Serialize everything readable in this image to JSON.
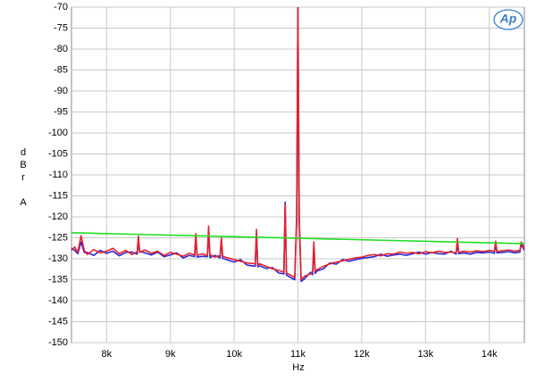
{
  "chart_data": {
    "type": "line",
    "xlabel": "Hz",
    "ylabel": "dBr A",
    "logo": "Ap",
    "xlim": [
      7450,
      14550
    ],
    "ylim": [
      -150,
      -70
    ],
    "xticks": [
      {
        "value": 8000,
        "label": "8k"
      },
      {
        "value": 9000,
        "label": "9k"
      },
      {
        "value": 10000,
        "label": "10k"
      },
      {
        "value": 11000,
        "label": "11k"
      },
      {
        "value": 12000,
        "label": "12k"
      },
      {
        "value": 13000,
        "label": "13k"
      },
      {
        "value": 14000,
        "label": "14k"
      }
    ],
    "yticks": [
      -70,
      -75,
      -80,
      -85,
      -90,
      -95,
      -100,
      -105,
      -110,
      -115,
      -120,
      -125,
      -130,
      -135,
      -140,
      -145,
      -150
    ],
    "grid": true,
    "series": [
      {
        "color": "#2a2ad8",
        "x": [
          7450,
          7500,
          7550,
          7600,
          7650,
          7700,
          7800,
          7900,
          8000,
          8100,
          8200,
          8300,
          8400,
          8480,
          8500,
          8520,
          8600,
          8700,
          8800,
          8900,
          9000,
          9100,
          9200,
          9300,
          9380,
          9400,
          9420,
          9500,
          9580,
          9600,
          9620,
          9700,
          9780,
          9800,
          9820,
          9900,
          10000,
          10100,
          10200,
          10330,
          10350,
          10370,
          10400,
          10500,
          10600,
          10700,
          10780,
          10800,
          10820,
          10900,
          10950,
          10980,
          11000,
          11020,
          11050,
          11100,
          11200,
          11230,
          11250,
          11270,
          11300,
          11400,
          11500,
          11600,
          11700,
          11800,
          11900,
          12000,
          12100,
          12200,
          12300,
          12400,
          12500,
          12600,
          12700,
          12800,
          12900,
          13000,
          13100,
          13200,
          13300,
          13400,
          13480,
          13500,
          13520,
          13600,
          13700,
          13800,
          13900,
          14000,
          14080,
          14100,
          14120,
          14200,
          14300,
          14400,
          14480,
          14500,
          14550
        ],
        "values": [
          -127.5,
          -128,
          -128.8,
          -126,
          -128.5,
          -128.5,
          -129.2,
          -128,
          -128.7,
          -128.2,
          -129.3,
          -128.5,
          -128.4,
          -128.9,
          -126,
          -128.2,
          -128.6,
          -129.1,
          -128.4,
          -129.5,
          -129.1,
          -128.6,
          -129.8,
          -129.2,
          -129.5,
          -125,
          -129.6,
          -129.4,
          -129.5,
          -123,
          -129.7,
          -129.2,
          -129.8,
          -125.5,
          -129.9,
          -130.3,
          -130.8,
          -130.2,
          -131.5,
          -131.8,
          -124,
          -131.9,
          -131.7,
          -132.3,
          -132.1,
          -133.4,
          -133.6,
          -116.5,
          -133.9,
          -134.6,
          -135,
          -121,
          -70,
          -121,
          -135.4,
          -134.8,
          -133.2,
          -133.8,
          -127,
          -133.5,
          -132.9,
          -132.4,
          -131,
          -131.3,
          -130.2,
          -130.6,
          -130.2,
          -129.9,
          -129.7,
          -129.5,
          -128.9,
          -129.4,
          -129.1,
          -128.9,
          -129.2,
          -128.8,
          -128.4,
          -128.9,
          -128.5,
          -128.8,
          -128.9,
          -128.2,
          -128.9,
          -126,
          -128.8,
          -128.6,
          -128.9,
          -128.5,
          -128.6,
          -128.4,
          -128.7,
          -126.4,
          -128.6,
          -128.5,
          -128.3,
          -128.6,
          -128.4,
          -126.5,
          -128
        ]
      },
      {
        "color": "#e8202a",
        "x": [
          7450,
          7500,
          7550,
          7600,
          7650,
          7700,
          7800,
          7900,
          8000,
          8100,
          8200,
          8300,
          8400,
          8480,
          8500,
          8520,
          8600,
          8700,
          8800,
          8900,
          9000,
          9100,
          9200,
          9300,
          9380,
          9400,
          9420,
          9500,
          9580,
          9600,
          9620,
          9700,
          9780,
          9800,
          9820,
          9900,
          10000,
          10100,
          10200,
          10330,
          10350,
          10370,
          10400,
          10500,
          10600,
          10700,
          10780,
          10800,
          10820,
          10900,
          10950,
          10980,
          11000,
          11020,
          11050,
          11100,
          11200,
          11230,
          11250,
          11270,
          11300,
          11400,
          11500,
          11600,
          11700,
          11800,
          11900,
          12000,
          12100,
          12200,
          12300,
          12400,
          12500,
          12600,
          12700,
          12800,
          12900,
          13000,
          13100,
          13200,
          13300,
          13400,
          13480,
          13500,
          13520,
          13600,
          13700,
          13800,
          13900,
          14000,
          14080,
          14100,
          14120,
          14200,
          14300,
          14400,
          14480,
          14500,
          14550
        ],
        "values": [
          -128,
          -127.2,
          -128.5,
          -124.5,
          -128,
          -129,
          -127.8,
          -128.6,
          -128.2,
          -127.5,
          -128.8,
          -128,
          -129,
          -128.3,
          -124.6,
          -128.5,
          -127.9,
          -128.7,
          -128.2,
          -129.2,
          -128.5,
          -128.9,
          -129.4,
          -128.7,
          -129.1,
          -124,
          -129.2,
          -128.8,
          -129.3,
          -122.2,
          -129,
          -129.6,
          -129.2,
          -125,
          -129.4,
          -129.8,
          -130.2,
          -130.6,
          -131,
          -131.2,
          -123,
          -131.5,
          -131.2,
          -131.8,
          -132.4,
          -132.8,
          -133.2,
          -117,
          -133.4,
          -134,
          -134.5,
          -120,
          -70,
          -120,
          -135,
          -134.2,
          -133.6,
          -133.2,
          -126,
          -133,
          -132.6,
          -131.8,
          -131.2,
          -130.8,
          -130.5,
          -130.1,
          -129.8,
          -129.6,
          -129.2,
          -129,
          -129.3,
          -128.8,
          -128.9,
          -128.4,
          -128.7,
          -128.5,
          -128.8,
          -128.3,
          -128.6,
          -128.2,
          -128.5,
          -128.4,
          -128.6,
          -125.2,
          -128.5,
          -128.2,
          -128.4,
          -128.1,
          -128.3,
          -128,
          -128.2,
          -125.8,
          -128.3,
          -128.1,
          -127.9,
          -128.2,
          -128,
          -126,
          -127.5
        ]
      },
      {
        "color": "#22dd22",
        "x": [
          7450,
          14550
        ],
        "values": [
          -123.8,
          -126.4
        ]
      }
    ]
  }
}
